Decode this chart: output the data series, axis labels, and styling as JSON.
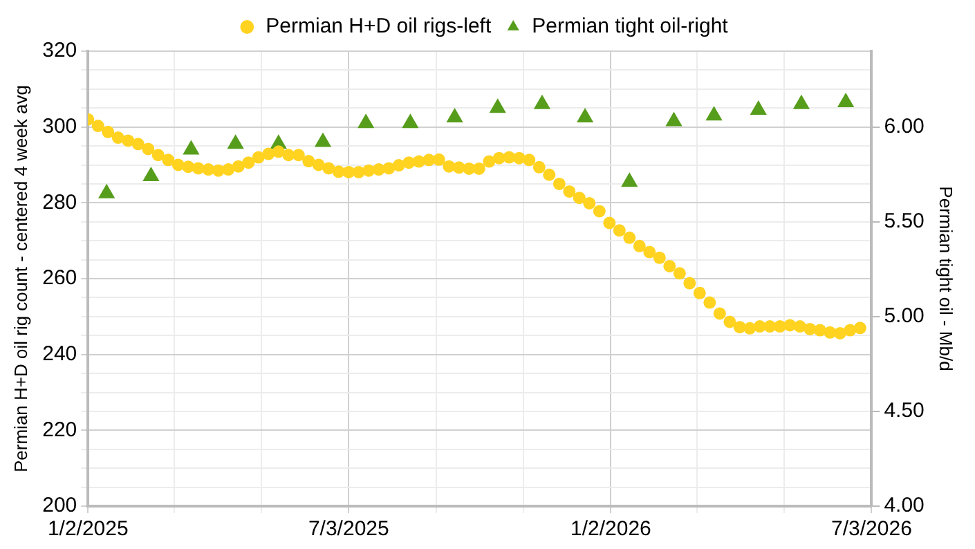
{
  "chart_data": {
    "type": "scatter",
    "xlim": [
      "2025-01-02",
      "2026-07-03"
    ],
    "xticks": [
      {
        "value": "2025-01-02",
        "label": "1/2/2025"
      },
      {
        "value": "2025-03-03",
        "label": null
      },
      {
        "value": "2025-05-03",
        "label": null
      },
      {
        "value": "2025-07-03",
        "label": "7/3/2025"
      },
      {
        "value": "2025-09-02",
        "label": null
      },
      {
        "value": "2025-11-02",
        "label": null
      },
      {
        "value": "2026-01-02",
        "label": "1/2/2026"
      },
      {
        "value": "2026-03-03",
        "label": null
      },
      {
        "value": "2026-05-03",
        "label": null
      },
      {
        "value": "2026-07-03",
        "label": "7/3/2026"
      }
    ],
    "ylim": [
      200,
      320
    ],
    "yticks": [
      200,
      {
        "value": 205,
        "label": null
      },
      {
        "value": 210,
        "label": null
      },
      {
        "value": 215,
        "label": null
      },
      220,
      {
        "value": 225,
        "label": null
      },
      {
        "value": 230,
        "label": null
      },
      {
        "value": 235,
        "label": null
      },
      240,
      {
        "value": 245,
        "label": null
      },
      {
        "value": 250,
        "label": null
      },
      {
        "value": 255,
        "label": null
      },
      260,
      {
        "value": 265,
        "label": null
      },
      {
        "value": 270,
        "label": null
      },
      {
        "value": 275,
        "label": null
      },
      280,
      {
        "value": 285,
        "label": null
      },
      {
        "value": 290,
        "label": null
      },
      {
        "value": 295,
        "label": null
      },
      300,
      {
        "value": 305,
        "label": null
      },
      {
        "value": 310,
        "label": null
      },
      {
        "value": 315,
        "label": null
      },
      320
    ],
    "y2lim": [
      4,
      6.4
    ],
    "y2ticks": [
      {
        "value": 4,
        "label": "4.00"
      },
      {
        "value": 4.5,
        "label": "4.50"
      },
      {
        "value": 5,
        "label": "5.00"
      },
      {
        "value": 5.5,
        "label": "5.50"
      },
      {
        "value": 6,
        "label": "6.00"
      }
    ],
    "ylabel": "Permian H+D oil rig count - centered 4 week avg",
    "y2label": "Permian tight oil - Mb/d",
    "grid": true,
    "legend": "top",
    "series": [
      {
        "name": "Permian H+D oil rigs-left",
        "color": "#ffd320",
        "marker": "circle",
        "x": [
          "2025-01-02",
          "2025-01-09",
          "2025-01-16",
          "2025-01-23",
          "2025-01-30",
          "2025-02-06",
          "2025-02-13",
          "2025-02-20",
          "2025-02-27",
          "2025-03-06",
          "2025-03-13",
          "2025-03-20",
          "2025-03-27",
          "2025-04-03",
          "2025-04-10",
          "2025-04-17",
          "2025-04-24",
          "2025-05-01",
          "2025-05-08",
          "2025-05-15",
          "2025-05-22",
          "2025-05-29",
          "2025-06-05",
          "2025-06-12",
          "2025-06-19",
          "2025-06-26",
          "2025-07-03",
          "2025-07-10",
          "2025-07-17",
          "2025-07-24",
          "2025-07-31",
          "2025-08-07",
          "2025-08-14",
          "2025-08-21",
          "2025-08-28",
          "2025-09-04",
          "2025-09-11",
          "2025-09-18",
          "2025-09-25",
          "2025-10-02",
          "2025-10-09",
          "2025-10-16",
          "2025-10-23",
          "2025-10-30",
          "2025-11-06",
          "2025-11-13",
          "2025-11-20",
          "2025-11-27",
          "2025-12-04",
          "2025-12-11",
          "2025-12-18",
          "2025-12-25",
          "2026-01-01",
          "2026-01-08",
          "2026-01-15",
          "2026-01-22",
          "2026-01-29",
          "2026-02-05",
          "2026-02-12",
          "2026-02-19",
          "2026-02-26",
          "2026-03-05",
          "2026-03-12",
          "2026-03-19",
          "2026-03-26",
          "2026-04-02",
          "2026-04-09",
          "2026-04-16",
          "2026-04-23",
          "2026-04-30",
          "2026-05-07",
          "2026-05-14",
          "2026-05-21",
          "2026-05-28",
          "2026-06-04",
          "2026-06-11",
          "2026-06-18",
          "2026-06-25"
        ],
        "values": [
          302,
          300.3,
          298.7,
          297.2,
          296.4,
          295.5,
          294.2,
          292.6,
          291.3,
          290,
          289.5,
          289.1,
          288.8,
          288.5,
          288.8,
          289.6,
          290.6,
          292,
          292.9,
          293.5,
          292.6,
          292.6,
          291,
          290,
          289.1,
          288.2,
          288.1,
          288.1,
          288.5,
          288.8,
          289.1,
          289.9,
          290.6,
          290.9,
          291.3,
          291.4,
          289.6,
          289.3,
          289,
          289,
          290.9,
          291.8,
          292,
          291.8,
          291.3,
          289.4,
          287.4,
          285,
          283,
          281.3,
          279.9,
          277.8,
          274.7,
          272.7,
          270.8,
          268.6,
          267,
          265.5,
          263.3,
          261.4,
          258.8,
          256.2,
          253.7,
          250.8,
          248.6,
          247.2,
          246.9,
          247.4,
          247.4,
          247.4,
          247.7,
          247.4,
          246.7,
          246.4,
          245.8,
          245.6,
          246.4,
          247
        ]
      },
      {
        "name": "Permian tight oil-right",
        "color": "#579d1c",
        "marker": "triangle",
        "axis": "y2",
        "x": [
          "2025-01-15",
          "2025-02-15",
          "2025-03-15",
          "2025-04-15",
          "2025-05-15",
          "2025-06-15",
          "2025-07-15",
          "2025-08-15",
          "2025-09-15",
          "2025-10-15",
          "2025-11-15",
          "2025-12-15",
          "2026-01-15",
          "2026-02-15",
          "2026-03-15",
          "2026-04-15",
          "2026-05-15",
          "2026-06-15"
        ],
        "values": [
          5.65,
          5.74,
          5.88,
          5.91,
          5.91,
          5.92,
          6.02,
          6.02,
          6.05,
          6.1,
          6.12,
          6.05,
          5.71,
          6.03,
          6.06,
          6.09,
          6.12,
          6.13
        ]
      }
    ]
  }
}
